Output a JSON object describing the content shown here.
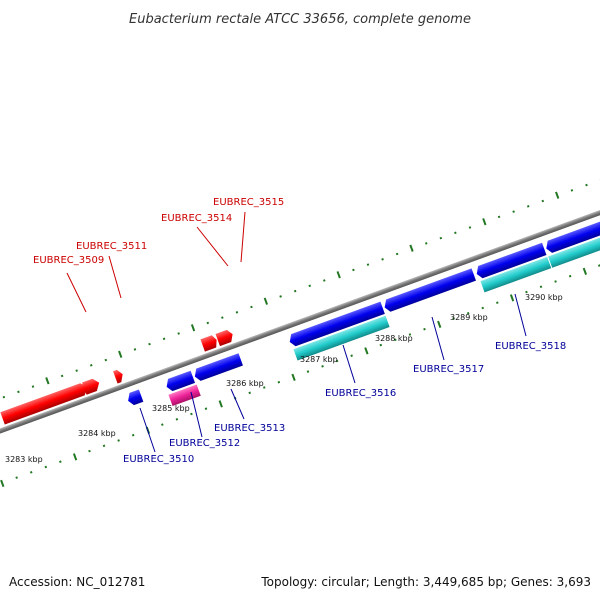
{
  "title": "Eubacterium rectale ATCC 33656, complete genome",
  "footer": {
    "accession": "Accession: NC_012781",
    "summary": "Topology: circular; Length: 3,449,685 bp; Genes: 3,693"
  },
  "colors": {
    "forward_gene": "#ff0000",
    "reverse_gene": "#0000ee",
    "cyan_feature": "#22cccc",
    "magenta_feature": "#ee2299",
    "tick": "#227722",
    "backbone": "#888888",
    "label_forward": "#cc0000",
    "label_reverse": "#000099"
  },
  "scale_labels": [
    "3283 kbp",
    "3284 kbp",
    "3285 kbp",
    "3286 kbp",
    "3287 kbp",
    "3288 kbp",
    "3289 kbp",
    "3290 kbp"
  ],
  "forward_labels": [
    "EUBREC_3509",
    "EUBREC_3511",
    "EUBREC_3514",
    "EUBREC_3515"
  ],
  "reverse_labels": [
    "EUBREC_3510",
    "EUBREC_3512",
    "EUBREC_3513",
    "EUBREC_3516",
    "EUBREC_3517",
    "EUBREC_3518"
  ]
}
